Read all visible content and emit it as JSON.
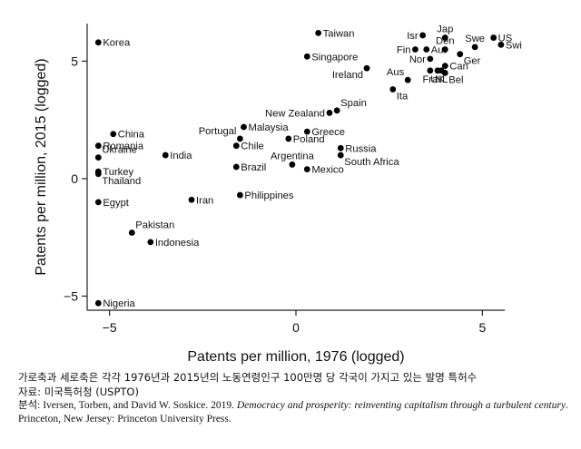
{
  "chart_data": {
    "type": "scatter",
    "xlabel": "Patents per million, 1976 (logged)",
    "ylabel": "Patents per million, 2015 (logged)",
    "xlim": [
      -5.6,
      5.6
    ],
    "ylim": [
      -5.6,
      6.6
    ],
    "xticks": [
      -5,
      0,
      5
    ],
    "yticks": [
      -5,
      0,
      5
    ],
    "xtick_labels": [
      "−5",
      "0",
      "5"
    ],
    "ytick_labels": [
      "−5",
      "0",
      "5"
    ],
    "grid": false,
    "marker_color": "#000000",
    "points": [
      {
        "label": "Korea",
        "x": -5.3,
        "y": 5.8,
        "pos": "r"
      },
      {
        "label": "Taiwan",
        "x": 0.6,
        "y": 6.2,
        "pos": "r"
      },
      {
        "label": "Singapore",
        "x": 0.3,
        "y": 5.2,
        "pos": "r"
      },
      {
        "label": "Ireland",
        "x": 1.9,
        "y": 4.7,
        "pos": "bl"
      },
      {
        "label": "Isr",
        "x": 3.4,
        "y": 6.1,
        "pos": "l"
      },
      {
        "label": "Jap",
        "x": 4.0,
        "y": 6.0,
        "pos": "t"
      },
      {
        "label": "Fin",
        "x": 3.2,
        "y": 5.5,
        "pos": "l"
      },
      {
        "label": "Aut",
        "x": 3.5,
        "y": 5.5,
        "pos": "r"
      },
      {
        "label": "Den",
        "x": 4.0,
        "y": 5.5,
        "pos": "t"
      },
      {
        "label": "Swe",
        "x": 4.8,
        "y": 5.6,
        "pos": "t"
      },
      {
        "label": "US",
        "x": 5.3,
        "y": 6.0,
        "pos": "r"
      },
      {
        "label": "Swi",
        "x": 5.5,
        "y": 5.7,
        "pos": "r"
      },
      {
        "label": "Nor",
        "x": 3.6,
        "y": 5.1,
        "pos": "l"
      },
      {
        "label": "Ger",
        "x": 4.4,
        "y": 5.3,
        "pos": "br"
      },
      {
        "label": "Aus",
        "x": 3.0,
        "y": 4.2,
        "pos": "tl"
      },
      {
        "label": "Can",
        "x": 4.0,
        "y": 4.8,
        "pos": "r"
      },
      {
        "label": "NL",
        "x": 3.9,
        "y": 4.6,
        "pos": "b"
      },
      {
        "label": "Fra",
        "x": 3.6,
        "y": 4.6,
        "pos": "b"
      },
      {
        "label": "UK",
        "x": 3.8,
        "y": 4.6,
        "pos": "b"
      },
      {
        "label": "Bel",
        "x": 4.0,
        "y": 4.5,
        "pos": "br"
      },
      {
        "label": "Ita",
        "x": 2.6,
        "y": 3.8,
        "pos": "br"
      },
      {
        "label": "Spain",
        "x": 1.1,
        "y": 2.9,
        "pos": "tr"
      },
      {
        "label": "New Zealand",
        "x": 0.9,
        "y": 2.8,
        "pos": "l"
      },
      {
        "label": "Malaysia",
        "x": -1.4,
        "y": 2.2,
        "pos": "r"
      },
      {
        "label": "Portugal",
        "x": -1.5,
        "y": 1.7,
        "pos": "tl"
      },
      {
        "label": "Greece",
        "x": 0.3,
        "y": 2.0,
        "pos": "r"
      },
      {
        "label": "Poland",
        "x": -0.2,
        "y": 1.7,
        "pos": "r"
      },
      {
        "label": "Chile",
        "x": -1.6,
        "y": 1.4,
        "pos": "r"
      },
      {
        "label": "China",
        "x": -4.9,
        "y": 1.9,
        "pos": "r"
      },
      {
        "label": "Romania",
        "x": -5.3,
        "y": 1.4,
        "pos": "r"
      },
      {
        "label": "Ukraine",
        "x": -5.3,
        "y": 0.9,
        "pos": "tr"
      },
      {
        "label": "Turkey",
        "x": -5.3,
        "y": 0.3,
        "pos": "r"
      },
      {
        "label": "Thailand",
        "x": -5.3,
        "y": 0.2,
        "pos": "br"
      },
      {
        "label": "India",
        "x": -3.5,
        "y": 1.0,
        "pos": "r"
      },
      {
        "label": "Brazil",
        "x": -1.6,
        "y": 0.5,
        "pos": "r"
      },
      {
        "label": "Argentina",
        "x": -0.1,
        "y": 0.6,
        "pos": "t"
      },
      {
        "label": "Mexico",
        "x": 0.3,
        "y": 0.4,
        "pos": "r"
      },
      {
        "label": "Russia",
        "x": 1.2,
        "y": 1.3,
        "pos": "r"
      },
      {
        "label": "South Africa",
        "x": 1.2,
        "y": 1.0,
        "pos": "br"
      },
      {
        "label": "Philippines",
        "x": -1.5,
        "y": -0.7,
        "pos": "r"
      },
      {
        "label": "Iran",
        "x": -2.8,
        "y": -0.9,
        "pos": "r"
      },
      {
        "label": "Egypt",
        "x": -5.3,
        "y": -1.0,
        "pos": "r"
      },
      {
        "label": "Pakistan",
        "x": -4.4,
        "y": -2.3,
        "pos": "tr"
      },
      {
        "label": "Indonesia",
        "x": -3.9,
        "y": -2.7,
        "pos": "r"
      },
      {
        "label": "Nigeria",
        "x": -5.3,
        "y": -5.3,
        "pos": "r"
      }
    ]
  },
  "caption": {
    "line1": "가로축과 세로축은 각각 1976년과 2015년의 노동연령인구 100만명 당 각국이 가지고 있는 발명 특허수",
    "line2": "자료: 미국특허청 (USPTO)",
    "source_prefix": "분석: Iversen, Torben, and David W. Soskice. 2019. ",
    "source_title": "Democracy and prosperity: reinventing capitalism through a turbulent century",
    "source_suffix": ". Princeton, New Jersey: Princeton University Press."
  }
}
